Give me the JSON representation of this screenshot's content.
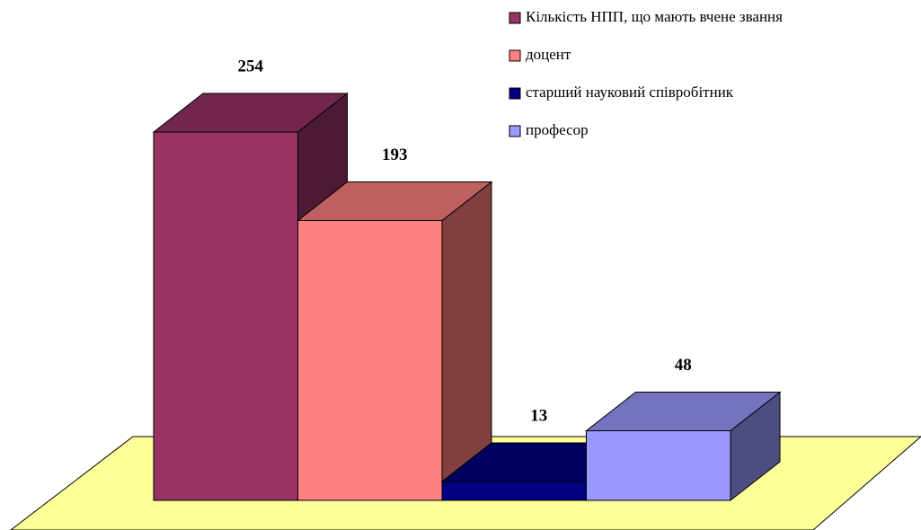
{
  "chart_data": {
    "type": "bar3d",
    "series": [
      {
        "name": "Кількість НПП, що мають вчене звання",
        "color": "#993366",
        "values": [
          254
        ]
      },
      {
        "name": "доцент",
        "color": "#ff8080",
        "values": [
          193
        ]
      },
      {
        "name": "старший науковий співробітник",
        "color": "#000080",
        "values": [
          13
        ]
      },
      {
        "name": "професор",
        "color": "#9999ff",
        "values": [
          48
        ]
      }
    ]
  }
}
